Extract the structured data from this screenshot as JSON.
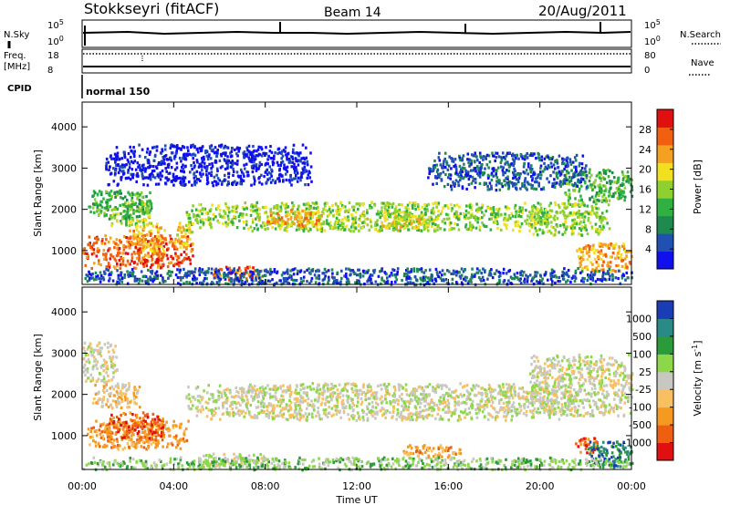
{
  "header": {
    "station": "Stokkseyri (fitACF)",
    "beam": "Beam 14",
    "date": "20/Aug/2011"
  },
  "strip_labels": {
    "nsky": "N.Sky",
    "nsky_tick_top": "10^5",
    "nsky_tick_bottom": "10^0",
    "nsearch": "N.Search",
    "nsearch_tick_top": "10^5",
    "nsearch_tick_bottom": "10^0",
    "freq_line1": "Freq.",
    "freq_line2": "[MHz]",
    "freq_tick_top": "18",
    "freq_tick_bottom": "8",
    "nave": "Nave",
    "nave_tick_top": "80",
    "nave_tick_bottom": "0",
    "cpid": "CPID",
    "cpid_value": "normal 150"
  },
  "chart_data": [
    {
      "type": "heatmap",
      "name": "power",
      "ylabel": "Slant Range [km]",
      "xlabel": "",
      "ylim": [
        180,
        4600
      ],
      "yticks": [
        "1000",
        "2000",
        "3000",
        "4000"
      ],
      "colorbar_label": "Power [dB]",
      "colorbar_ticks": [
        "4",
        "8",
        "12",
        "16",
        "20",
        "24",
        "28"
      ],
      "colors": [
        "#1010ee",
        "#2050b0",
        "#1e8a50",
        "#2fb040",
        "#8ed030",
        "#f0e020",
        "#f5a020",
        "#f06010",
        "#e01010"
      ],
      "regions": [
        {
          "t0": 0.0,
          "t1": 4.8,
          "r0": 600,
          "r1": 1400,
          "level": 7
        },
        {
          "t0": 2.0,
          "t1": 3.6,
          "r0": 900,
          "r1": 1700,
          "level": 6
        },
        {
          "t0": 4.0,
          "t1": 4.8,
          "r0": 1100,
          "r1": 1700,
          "level": 5
        },
        {
          "t0": 1.2,
          "t1": 3.0,
          "r0": 1600,
          "r1": 2200,
          "level": 4
        },
        {
          "t0": 0.2,
          "t1": 3.0,
          "r0": 1800,
          "r1": 2500,
          "level": 3
        },
        {
          "t0": 5.6,
          "t1": 7.8,
          "r0": 300,
          "r1": 650,
          "level": 7
        },
        {
          "t0": 4.5,
          "t1": 20.5,
          "r0": 1500,
          "r1": 2200,
          "level": 4
        },
        {
          "t0": 8.0,
          "t1": 10.5,
          "r0": 1600,
          "r1": 2000,
          "level": 6
        },
        {
          "t0": 13.0,
          "t1": 15.0,
          "r0": 1500,
          "r1": 1900,
          "level": 5
        },
        {
          "t0": 19.5,
          "t1": 23.0,
          "r0": 1400,
          "r1": 2200,
          "level": 4
        },
        {
          "t0": 21.0,
          "t1": 24.0,
          "r0": 2200,
          "r1": 3000,
          "level": 3
        },
        {
          "t0": 21.5,
          "t1": 24.0,
          "r0": 500,
          "r1": 1200,
          "level": 6
        },
        {
          "t0": 0.0,
          "t1": 24.0,
          "r0": 200,
          "r1": 600,
          "level": 1
        },
        {
          "t0": 1.0,
          "t1": 10.0,
          "r0": 2600,
          "r1": 3600,
          "level": 0
        },
        {
          "t0": 15.0,
          "t1": 22.0,
          "r0": 2500,
          "r1": 3400,
          "level": 1
        }
      ]
    },
    {
      "type": "heatmap",
      "name": "velocity",
      "ylabel": "Slant Range [km]",
      "xlabel": "Time UT",
      "ylim": [
        180,
        4600
      ],
      "yticks": [
        "1000",
        "2000",
        "3000",
        "4000"
      ],
      "xticks": [
        "00:00",
        "04:00",
        "08:00",
        "12:00",
        "16:00",
        "20:00",
        "00:00"
      ],
      "colorbar_label": "Velocity [m s^-1]",
      "colorbar_ticks": [
        "1000",
        "500",
        "100",
        "25",
        "-25",
        "-100",
        "-500",
        "-1000"
      ],
      "colors": [
        "#1a3cb4",
        "#2a8a86",
        "#2a9a3a",
        "#8cd84a",
        "#c8c8c0",
        "#f8c060",
        "#f59a20",
        "#ee6010",
        "#e01010"
      ],
      "regions": [
        {
          "t0": 4.5,
          "t1": 21.5,
          "r0": 1400,
          "r1": 2300,
          "level": 4
        },
        {
          "t0": 19.5,
          "t1": 24.0,
          "r0": 1500,
          "r1": 3000,
          "level": 4
        },
        {
          "t0": 0.2,
          "t1": 4.6,
          "r0": 700,
          "r1": 1400,
          "level": 6
        },
        {
          "t0": 1.0,
          "t1": 3.5,
          "r0": 900,
          "r1": 1600,
          "level": 7
        },
        {
          "t0": 0.4,
          "t1": 2.5,
          "r0": 1700,
          "r1": 2300,
          "level": 5
        },
        {
          "t0": 5.0,
          "t1": 8.0,
          "r0": 300,
          "r1": 600,
          "level": 4
        },
        {
          "t0": 14.0,
          "t1": 16.5,
          "r0": 500,
          "r1": 800,
          "level": 6
        },
        {
          "t0": 21.5,
          "t1": 22.5,
          "r0": 600,
          "r1": 1000,
          "level": 7
        },
        {
          "t0": 22.0,
          "t1": 24.0,
          "r0": 250,
          "r1": 900,
          "level": 1
        },
        {
          "t0": 0.0,
          "t1": 24.0,
          "r0": 200,
          "r1": 500,
          "level": 3
        },
        {
          "t0": 0.0,
          "t1": 1.5,
          "r0": 2300,
          "r1": 3300,
          "level": 4
        }
      ]
    }
  ]
}
